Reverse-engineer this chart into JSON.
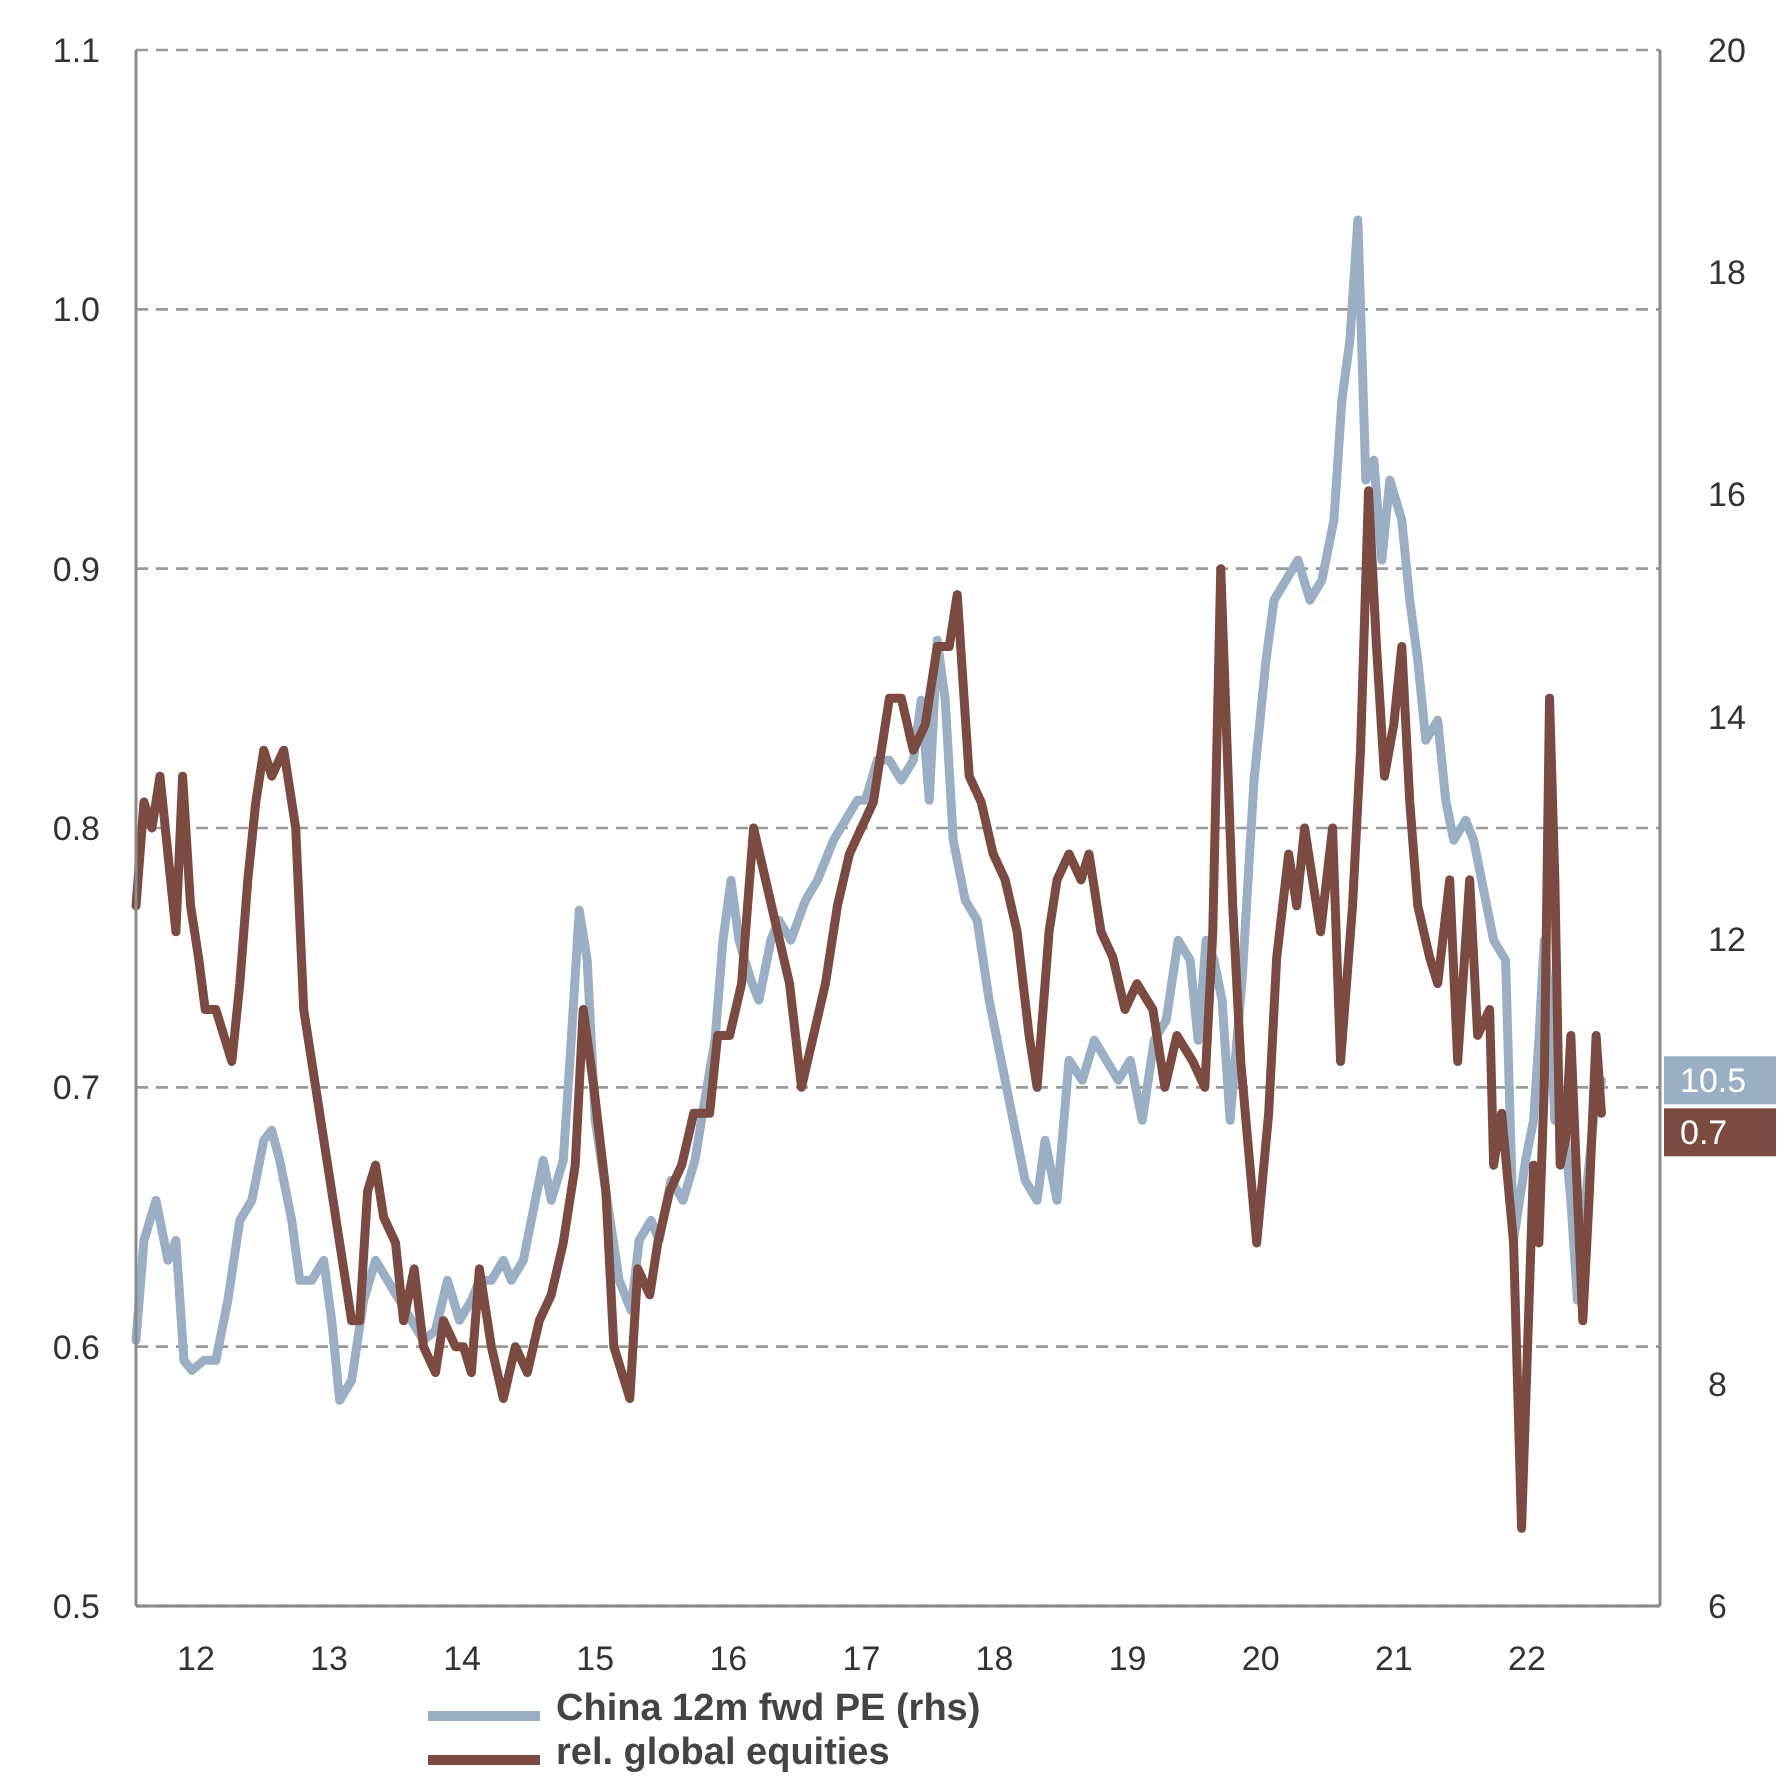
{
  "chart_data": {
    "type": "line",
    "xlim": [
      2011.55,
      2023
    ],
    "xticks": [
      {
        "value": 2012,
        "label": "12"
      },
      {
        "value": 2013,
        "label": "13"
      },
      {
        "value": 2014,
        "label": "14"
      },
      {
        "value": 2015,
        "label": "15"
      },
      {
        "value": 2016,
        "label": "16"
      },
      {
        "value": 2017,
        "label": "17"
      },
      {
        "value": 2018,
        "label": "18"
      },
      {
        "value": 2019,
        "label": "19"
      },
      {
        "value": 2020,
        "label": "20"
      },
      {
        "value": 2021,
        "label": "21"
      },
      {
        "value": 2022,
        "label": "22"
      }
    ],
    "ylim": [
      0.5,
      1.1
    ],
    "yticks": [
      0.5,
      0.6,
      0.7,
      0.8,
      0.9,
      {
        "value": 1,
        "label": "1.0"
      },
      1.1
    ],
    "y2lim": [
      6,
      20
    ],
    "y2ticks": [
      6,
      8,
      12,
      14,
      16,
      18,
      20
    ],
    "grid": "y",
    "legend": "bottom",
    "line_style": "solid",
    "marker": "none",
    "annotations": [
      "10.5",
      "0.7"
    ],
    "series": [
      {
        "name": "China 12m fwd PE (rhs)",
        "color": "#9aaec4",
        "axis": "y2",
        "x": [
          2011.55,
          2011.61,
          2011.7,
          2011.79,
          2011.85,
          2011.91,
          2011.97,
          2012.06,
          2012.15,
          2012.24,
          2012.33,
          2012.42,
          2012.51,
          2012.57,
          2012.63,
          2012.72,
          2012.78,
          2012.87,
          2012.96,
          2013.02,
          2013.08,
          2013.17,
          2013.26,
          2013.35,
          2013.44,
          2013.53,
          2013.62,
          2013.71,
          2013.8,
          2013.89,
          2013.98,
          2014.07,
          2014.13,
          2014.22,
          2014.31,
          2014.37,
          2014.46,
          2014.55,
          2014.61,
          2014.67,
          2014.76,
          2014.82,
          2014.88,
          2014.94,
          2015,
          2015.09,
          2015.18,
          2015.27,
          2015.33,
          2015.42,
          2015.48,
          2015.57,
          2015.66,
          2015.75,
          2015.81,
          2015.9,
          2015.96,
          2016.02,
          2016.08,
          2016.17,
          2016.23,
          2016.32,
          2016.38,
          2016.47,
          2016.58,
          2016.67,
          2016.79,
          2016.88,
          2016.97,
          2017.03,
          2017.12,
          2017.21,
          2017.3,
          2017.39,
          2017.45,
          2017.51,
          2017.57,
          2017.63,
          2017.69,
          2017.78,
          2017.87,
          2017.96,
          2018.05,
          2018.14,
          2018.23,
          2018.32,
          2018.38,
          2018.47,
          2018.56,
          2018.66,
          2018.75,
          2018.84,
          2018.93,
          2019.02,
          2019.11,
          2019.2,
          2019.29,
          2019.38,
          2019.47,
          2019.53,
          2019.59,
          2019.65,
          2019.71,
          2019.77,
          2019.86,
          2019.95,
          2020.04,
          2020.1,
          2020.19,
          2020.28,
          2020.37,
          2020.46,
          2020.55,
          2020.61,
          2020.67,
          2020.73,
          2020.79,
          2020.85,
          2020.91,
          2020.97,
          2021.06,
          2021.12,
          2021.18,
          2021.24,
          2021.33,
          2021.39,
          2021.45,
          2021.54,
          2021.6,
          2021.69,
          2021.75,
          2021.84,
          2021.9,
          2021.99,
          2022.05,
          2022.09,
          2022.13,
          2022.17,
          2022.21,
          2022.25,
          2022.29,
          2022.33,
          2022.38,
          2022.44,
          2022.5,
          2022.56
        ],
        "values": [
          8.39,
          9.29,
          9.65,
          9.11,
          9.29,
          8.21,
          8.12,
          8.21,
          8.21,
          8.75,
          9.47,
          9.65,
          10.19,
          10.28,
          10.01,
          9.47,
          8.93,
          8.93,
          9.11,
          8.57,
          7.85,
          8.03,
          8.75,
          9.11,
          8.93,
          8.75,
          8.57,
          8.39,
          8.48,
          8.93,
          8.57,
          8.75,
          8.93,
          8.93,
          9.11,
          8.93,
          9.11,
          9.65,
          10.01,
          9.65,
          10.01,
          11.09,
          12.26,
          11.81,
          10.37,
          9.65,
          8.93,
          8.66,
          9.29,
          9.47,
          9.29,
          9.83,
          9.65,
          10.01,
          10.46,
          11.09,
          11.99,
          12.53,
          11.99,
          11.63,
          11.45,
          11.99,
          12.17,
          11.99,
          12.35,
          12.53,
          12.89,
          13.07,
          13.25,
          13.25,
          13.61,
          13.61,
          13.43,
          13.61,
          14.15,
          13.25,
          14.69,
          14.15,
          12.89,
          12.35,
          12.17,
          11.45,
          10.91,
          10.37,
          9.83,
          9.65,
          10.19,
          9.65,
          10.91,
          10.73,
          11.09,
          10.91,
          10.73,
          10.91,
          10.37,
          11.09,
          11.27,
          11.99,
          11.81,
          11.09,
          11.99,
          11.81,
          11.45,
          10.37,
          11.63,
          13.43,
          14.51,
          15.05,
          15.23,
          15.41,
          15.05,
          15.23,
          15.77,
          16.85,
          17.39,
          18.47,
          16.13,
          16.31,
          15.41,
          16.13,
          15.77,
          15.05,
          14.51,
          13.79,
          13.97,
          13.25,
          12.89,
          13.07,
          12.89,
          12.35,
          11.99,
          11.81,
          9.29,
          10.01,
          10.37,
          11.09,
          11.99,
          11.45,
          10.37,
          10.55,
          10.19,
          9.65,
          8.75,
          9.65,
          10.37,
          10.73
        ]
      },
      {
        "name": "rel. global equities",
        "color": "#7b4a40",
        "axis": "y",
        "x": [
          2011.55,
          2011.61,
          2011.67,
          2011.73,
          2011.79,
          2011.85,
          2011.9,
          2011.96,
          2012.02,
          2012.07,
          2012.15,
          2012.21,
          2012.27,
          2012.33,
          2012.39,
          2012.45,
          2012.51,
          2012.57,
          2012.66,
          2012.75,
          2012.81,
          2012.9,
          2012.99,
          2013.08,
          2013.17,
          2013.23,
          2013.29,
          2013.35,
          2013.41,
          2013.5,
          2013.56,
          2013.64,
          2013.71,
          2013.8,
          2013.86,
          2013.95,
          2014.01,
          2014.07,
          2014.13,
          2014.22,
          2014.31,
          2014.4,
          2014.49,
          2014.58,
          2014.67,
          2014.76,
          2014.85,
          2014.91,
          2014.99,
          2015.08,
          2015.14,
          2015.26,
          2015.32,
          2015.41,
          2015.47,
          2015.56,
          2015.65,
          2015.74,
          2015.8,
          2015.86,
          2015.92,
          2016.01,
          2016.1,
          2016.19,
          2016.28,
          2016.37,
          2016.46,
          2016.55,
          2016.64,
          2016.73,
          2016.82,
          2016.91,
          2017,
          2017.09,
          2017.21,
          2017.3,
          2017.39,
          2017.48,
          2017.57,
          2017.66,
          2017.72,
          2017.81,
          2017.9,
          2017.99,
          2018.08,
          2018.17,
          2018.26,
          2018.32,
          2018.41,
          2018.47,
          2018.56,
          2018.65,
          2018.71,
          2018.8,
          2018.89,
          2018.98,
          2019.07,
          2019.19,
          2019.28,
          2019.37,
          2019.49,
          2019.58,
          2019.64,
          2019.7,
          2019.79,
          2019.85,
          2019.97,
          2020.06,
          2020.12,
          2020.21,
          2020.27,
          2020.33,
          2020.45,
          2020.54,
          2020.6,
          2020.69,
          2020.75,
          2020.81,
          2020.87,
          2020.93,
          2021,
          2021.06,
          2021.12,
          2021.18,
          2021.27,
          2021.33,
          2021.42,
          2021.48,
          2021.57,
          2021.63,
          2021.72,
          2021.75,
          2021.81,
          2021.9,
          2021.96,
          2022.05,
          2022.09,
          2022.13,
          2022.17,
          2022.21,
          2022.25,
          2022.29,
          2022.33,
          2022.37,
          2022.42,
          2022.47,
          2022.52,
          2022.56
        ],
        "values": [
          0.77,
          0.81,
          0.8,
          0.82,
          0.79,
          0.76,
          0.82,
          0.77,
          0.75,
          0.73,
          0.73,
          0.72,
          0.71,
          0.74,
          0.78,
          0.81,
          0.83,
          0.82,
          0.83,
          0.8,
          0.73,
          0.7,
          0.67,
          0.64,
          0.61,
          0.61,
          0.66,
          0.67,
          0.65,
          0.64,
          0.61,
          0.63,
          0.6,
          0.59,
          0.61,
          0.6,
          0.6,
          0.59,
          0.63,
          0.6,
          0.58,
          0.6,
          0.59,
          0.61,
          0.62,
          0.64,
          0.67,
          0.73,
          0.7,
          0.66,
          0.6,
          0.58,
          0.63,
          0.62,
          0.64,
          0.66,
          0.67,
          0.69,
          0.69,
          0.69,
          0.72,
          0.72,
          0.74,
          0.8,
          0.78,
          0.76,
          0.74,
          0.7,
          0.72,
          0.74,
          0.77,
          0.79,
          0.8,
          0.81,
          0.85,
          0.85,
          0.83,
          0.84,
          0.87,
          0.87,
          0.89,
          0.82,
          0.81,
          0.79,
          0.78,
          0.76,
          0.72,
          0.7,
          0.76,
          0.78,
          0.79,
          0.78,
          0.79,
          0.76,
          0.75,
          0.73,
          0.74,
          0.73,
          0.7,
          0.72,
          0.71,
          0.7,
          0.76,
          0.9,
          0.77,
          0.71,
          0.64,
          0.69,
          0.75,
          0.79,
          0.77,
          0.8,
          0.76,
          0.8,
          0.71,
          0.77,
          0.83,
          0.93,
          0.87,
          0.82,
          0.84,
          0.87,
          0.81,
          0.77,
          0.75,
          0.74,
          0.78,
          0.71,
          0.78,
          0.72,
          0.73,
          0.67,
          0.69,
          0.64,
          0.53,
          0.67,
          0.64,
          0.7,
          0.85,
          0.78,
          0.67,
          0.68,
          0.72,
          0.67,
          0.61,
          0.66,
          0.72,
          0.69
        ]
      }
    ]
  }
}
